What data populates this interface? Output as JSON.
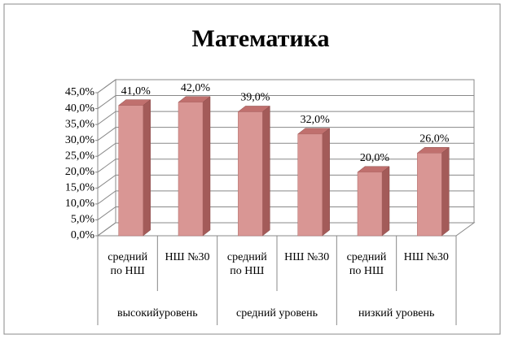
{
  "chart_data": {
    "type": "bar",
    "title": "Математика",
    "categories": [
      "средний по НШ",
      "НШ №30",
      "средний по НШ",
      "НШ №30",
      "средний по НШ",
      "НШ №30"
    ],
    "groups": [
      "высокийуровень",
      "средний уровень",
      "низкий уровень"
    ],
    "values": [
      41,
      42,
      39,
      32,
      20,
      26
    ],
    "value_labels": [
      "41,0%",
      "42,0%",
      "39,0%",
      "32,0%",
      "20,0%",
      "26,0%"
    ],
    "color": "#d99694",
    "ylim": [
      0,
      45
    ],
    "yticks": [
      {
        "value": 0,
        "label": "0,0%"
      },
      {
        "value": 5,
        "label": "5,0%"
      },
      {
        "value": 10,
        "label": "10,0%"
      },
      {
        "value": 15,
        "label": "15,0%"
      },
      {
        "value": 20,
        "label": "20,0%"
      },
      {
        "value": 25,
        "label": "25,0%"
      },
      {
        "value": 30,
        "label": "30,0%"
      },
      {
        "value": 35,
        "label": "35,0%"
      },
      {
        "value": 40,
        "label": "40,0%"
      },
      {
        "value": 45,
        "label": "45,0%"
      }
    ],
    "grid": true
  }
}
